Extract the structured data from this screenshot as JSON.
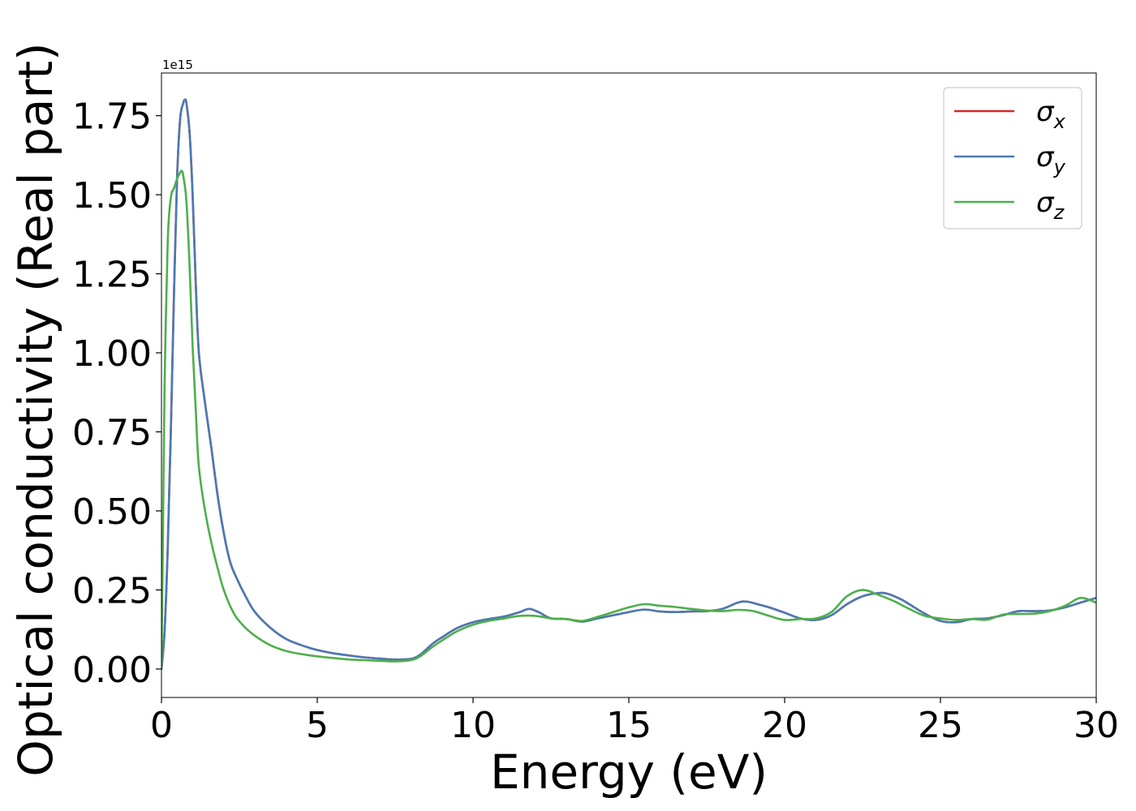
{
  "chart_data": {
    "type": "line",
    "xlabel": "Energy (eV)",
    "ylabel": "Optical conductivity (Real part)",
    "y_offset_label": "1e15",
    "xlim": [
      0,
      30
    ],
    "ylim": [
      -0.09,
      1.885
    ],
    "y_scale_factor": 1000000000000000.0,
    "x_ticks": [
      0,
      5,
      10,
      15,
      20,
      25,
      30
    ],
    "x_tick_labels": [
      "0",
      "5",
      "10",
      "15",
      "20",
      "25",
      "30"
    ],
    "y_ticks": [
      0.0,
      0.25,
      0.5,
      0.75,
      1.0,
      1.25,
      1.5,
      1.75
    ],
    "y_tick_labels": [
      "0.00",
      "0.25",
      "0.50",
      "0.75",
      "1.00",
      "1.25",
      "1.50",
      "1.75"
    ],
    "grid": false,
    "legend_position": "top-right",
    "series": [
      {
        "name": "σ",
        "subscript": "x",
        "color": "#d62728",
        "x": [
          0,
          0.1,
          0.2,
          0.3,
          0.4,
          0.5,
          0.6,
          0.7,
          0.75,
          0.8,
          0.9,
          1.0,
          1.1,
          1.2,
          1.4,
          1.6,
          1.8,
          2.0,
          2.2,
          2.4,
          2.7,
          3.0,
          3.5,
          4.0,
          4.5,
          5.0,
          5.5,
          6.0,
          6.5,
          7.0,
          7.5,
          8.0,
          8.3,
          8.7,
          9.0,
          9.5,
          10.0,
          10.5,
          11.0,
          11.5,
          11.8,
          12.1,
          12.5,
          13.0,
          13.5,
          14.0,
          14.5,
          15.0,
          15.5,
          16.0,
          16.5,
          17.0,
          17.5,
          18.0,
          18.5,
          18.8,
          19.2,
          19.5,
          20.0,
          20.5,
          21.0,
          21.5,
          22.0,
          22.5,
          23.0,
          23.3,
          23.7,
          24.0,
          24.5,
          25.0,
          25.5,
          26.0,
          26.5,
          27.0,
          27.5,
          28.0,
          28.5,
          29.0,
          29.5,
          30.0
        ],
        "y": [
          0.0,
          0.12,
          0.38,
          0.75,
          1.18,
          1.55,
          1.74,
          1.79,
          1.8,
          1.79,
          1.7,
          1.5,
          1.22,
          1.0,
          0.84,
          0.7,
          0.55,
          0.43,
          0.34,
          0.29,
          0.23,
          0.18,
          0.13,
          0.095,
          0.075,
          0.06,
          0.05,
          0.043,
          0.037,
          0.033,
          0.03,
          0.032,
          0.045,
          0.08,
          0.1,
          0.13,
          0.148,
          0.158,
          0.166,
          0.18,
          0.19,
          0.18,
          0.16,
          0.158,
          0.15,
          0.16,
          0.17,
          0.18,
          0.188,
          0.182,
          0.18,
          0.182,
          0.183,
          0.19,
          0.21,
          0.213,
          0.203,
          0.195,
          0.178,
          0.16,
          0.155,
          0.17,
          0.205,
          0.23,
          0.24,
          0.238,
          0.222,
          0.205,
          0.175,
          0.152,
          0.148,
          0.158,
          0.16,
          0.17,
          0.183,
          0.183,
          0.185,
          0.195,
          0.21,
          0.225
        ]
      },
      {
        "name": "σ",
        "subscript": "y",
        "color": "#4a7ab4",
        "x": [
          0,
          0.1,
          0.2,
          0.3,
          0.4,
          0.5,
          0.6,
          0.7,
          0.75,
          0.8,
          0.9,
          1.0,
          1.1,
          1.2,
          1.4,
          1.6,
          1.8,
          2.0,
          2.2,
          2.4,
          2.7,
          3.0,
          3.5,
          4.0,
          4.5,
          5.0,
          5.5,
          6.0,
          6.5,
          7.0,
          7.5,
          8.0,
          8.3,
          8.7,
          9.0,
          9.5,
          10.0,
          10.5,
          11.0,
          11.5,
          11.8,
          12.1,
          12.5,
          13.0,
          13.5,
          14.0,
          14.5,
          15.0,
          15.5,
          16.0,
          16.5,
          17.0,
          17.5,
          18.0,
          18.5,
          18.8,
          19.2,
          19.5,
          20.0,
          20.5,
          21.0,
          21.5,
          22.0,
          22.5,
          23.0,
          23.3,
          23.7,
          24.0,
          24.5,
          25.0,
          25.5,
          26.0,
          26.5,
          27.0,
          27.5,
          28.0,
          28.5,
          29.0,
          29.5,
          30.0
        ],
        "y": [
          0.0,
          0.12,
          0.38,
          0.75,
          1.18,
          1.55,
          1.74,
          1.79,
          1.8,
          1.79,
          1.7,
          1.5,
          1.22,
          1.0,
          0.84,
          0.7,
          0.55,
          0.43,
          0.34,
          0.29,
          0.23,
          0.18,
          0.13,
          0.095,
          0.075,
          0.06,
          0.05,
          0.043,
          0.037,
          0.033,
          0.03,
          0.032,
          0.045,
          0.08,
          0.1,
          0.13,
          0.148,
          0.158,
          0.166,
          0.18,
          0.19,
          0.18,
          0.16,
          0.158,
          0.15,
          0.16,
          0.17,
          0.18,
          0.188,
          0.182,
          0.18,
          0.182,
          0.183,
          0.19,
          0.21,
          0.213,
          0.203,
          0.195,
          0.178,
          0.16,
          0.155,
          0.17,
          0.205,
          0.23,
          0.24,
          0.238,
          0.222,
          0.205,
          0.175,
          0.152,
          0.148,
          0.158,
          0.16,
          0.17,
          0.183,
          0.183,
          0.185,
          0.195,
          0.21,
          0.225
        ]
      },
      {
        "name": "σ",
        "subscript": "z",
        "color": "#4daf4a",
        "x": [
          0,
          0.05,
          0.1,
          0.2,
          0.3,
          0.4,
          0.5,
          0.6,
          0.65,
          0.7,
          0.8,
          0.9,
          1.0,
          1.1,
          1.2,
          1.4,
          1.6,
          1.8,
          2.0,
          2.3,
          2.6,
          3.0,
          3.5,
          4.0,
          4.5,
          5.0,
          5.5,
          6.0,
          6.5,
          7.0,
          7.5,
          8.0,
          8.3,
          8.7,
          9.0,
          9.5,
          10.0,
          10.5,
          11.0,
          11.5,
          12.0,
          12.5,
          13.0,
          13.5,
          14.0,
          14.5,
          15.0,
          15.5,
          16.0,
          16.5,
          17.0,
          17.5,
          18.0,
          18.5,
          19.0,
          19.5,
          20.0,
          20.5,
          21.0,
          21.5,
          22.0,
          22.5,
          23.0,
          23.5,
          24.0,
          24.5,
          25.0,
          25.5,
          26.0,
          26.5,
          27.0,
          27.5,
          28.0,
          28.5,
          29.0,
          29.5,
          30.0
        ],
        "y": [
          0.0,
          0.45,
          0.9,
          1.35,
          1.49,
          1.52,
          1.55,
          1.57,
          1.575,
          1.56,
          1.48,
          1.28,
          1.02,
          0.82,
          0.64,
          0.5,
          0.4,
          0.32,
          0.25,
          0.18,
          0.14,
          0.105,
          0.075,
          0.057,
          0.047,
          0.04,
          0.035,
          0.03,
          0.028,
          0.026,
          0.024,
          0.028,
          0.04,
          0.07,
          0.09,
          0.12,
          0.14,
          0.152,
          0.16,
          0.168,
          0.168,
          0.16,
          0.158,
          0.152,
          0.165,
          0.18,
          0.195,
          0.205,
          0.2,
          0.196,
          0.19,
          0.185,
          0.183,
          0.187,
          0.183,
          0.168,
          0.155,
          0.158,
          0.16,
          0.18,
          0.23,
          0.25,
          0.235,
          0.215,
          0.19,
          0.168,
          0.16,
          0.155,
          0.158,
          0.156,
          0.172,
          0.174,
          0.175,
          0.183,
          0.2,
          0.225,
          0.21
        ]
      }
    ]
  }
}
